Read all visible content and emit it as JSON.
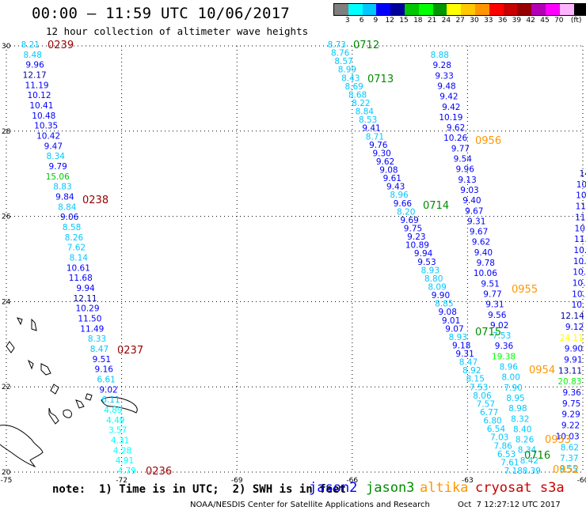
{
  "title": "00:00 – 11:59 UTC 10/06/2017",
  "subtitle": "12 hour collection of altimeter wave heights",
  "scale": {
    "colors": [
      "#7f7f7f",
      "#00ffff",
      "#00c8ff",
      "#0000ff",
      "#00009a",
      "#00c800",
      "#00ff00",
      "#009600",
      "#ffff00",
      "#ffc800",
      "#ff9600",
      "#ff0000",
      "#c80000",
      "#960000",
      "#b400b4",
      "#ff00ff",
      "#ffb4ff",
      "#000000"
    ],
    "labels": [
      "3",
      "6",
      "9",
      "12",
      "15",
      "18",
      "21",
      "24",
      "27",
      "30",
      "33",
      "36",
      "39",
      "42",
      "45",
      "70",
      "(ft)"
    ]
  },
  "map": {
    "x_ticks": [
      "-75",
      "-72",
      "-69",
      "-66",
      "-63",
      "-60"
    ],
    "y_ticks": [
      "30",
      "28",
      "26",
      "24",
      "22",
      "20"
    ],
    "x_range": [
      -75,
      -60
    ],
    "y_range": [
      20,
      30
    ]
  },
  "tracks": {
    "t1": {
      "values": [
        "8.21",
        "8.48",
        "9.96",
        "12.17",
        "11.19",
        "10.12",
        "10.41",
        "10.48",
        "10.35",
        "10.42",
        "9.47",
        "8.34",
        "9.79",
        "15.06",
        "8.83",
        "9.84",
        "8.84",
        "9.06",
        "8.58",
        "8.26",
        "7.62",
        "8.14",
        "10.61",
        "11.68",
        "9.94",
        "12.11",
        "10.29",
        "11.50",
        "11.49",
        "8.33",
        "8.47",
        "9.51",
        "9.16",
        "6.61",
        "9.02",
        "6.11",
        "4.89",
        "4.49",
        "3.57",
        "4.31",
        "4.28",
        "4.91",
        "4.79"
      ],
      "times": [
        "0239",
        "0238",
        "0237",
        "0236"
      ]
    },
    "t2": {
      "values": [
        "8.73",
        "8.76",
        "8.57",
        "8.99",
        "8.43",
        "8.69",
        "8.68",
        "8.22",
        "8.84",
        "8.53",
        "9.41",
        "8.71",
        "9.76",
        "9.30",
        "9.62",
        "9.08",
        "9.61",
        "9.43",
        "8.96",
        "9.66",
        "8.20",
        "9.69",
        "9.75",
        "9.23",
        "10.89",
        "9.94",
        "9.53",
        "8.93",
        "8.80",
        "8.09",
        "9.90",
        "8.85",
        "9.08",
        "9.01",
        "9.07",
        "8.93",
        "9.18",
        "9.31",
        "8.47",
        "8.92",
        "8.15",
        "7.53",
        "8.06",
        "7.57",
        "6.77",
        "6.80",
        "6.54",
        "7.03",
        "7.86",
        "6.53",
        "7.61",
        "7.18"
      ],
      "times": [
        "0712",
        "0713",
        "0714",
        "0715",
        "0716"
      ]
    },
    "t3": {
      "values": [
        "8.88",
        "9.28",
        "9.33",
        "9.48",
        "9.42",
        "9.42",
        "10.19",
        "9.62",
        "10.26",
        "9.77",
        "9.54",
        "9.96",
        "9.13",
        "9.03",
        "9.40",
        "9.67",
        "9.31",
        "9.67",
        "9.62",
        "9.40",
        "9.78",
        "10.06",
        "9.51",
        "9.77",
        "9.31",
        "9.56",
        "9.02",
        "7.53",
        "9.36",
        "19.38",
        "8.96",
        "8.00",
        "7.90",
        "8.95",
        "8.98",
        "8.32",
        "8.40",
        "8.26",
        "8.34",
        "8.42",
        "8.39"
      ],
      "times": [
        "0956",
        "0955",
        "0954",
        "0953"
      ]
    },
    "t4": {
      "values": [
        "14",
        "10.",
        "10.",
        "11.",
        "11.",
        "10.",
        "11.",
        "10.",
        "10.",
        "10.",
        "10.",
        "10.",
        "10.",
        "12.14",
        "9.12",
        "24.11",
        "9.90",
        "9.91",
        "13.11",
        "20.83",
        "9.36",
        "9.75",
        "9.29",
        "9.22",
        "10.03",
        "8.62",
        "7.37",
        "8.55"
      ],
      "times": [
        "0952"
      ]
    }
  },
  "footer": {
    "note": "note:  1) Time is in UTC;  2) SWH is in feet",
    "legend": [
      {
        "name": "jason2",
        "color": "#0000ff"
      },
      {
        "name": "jason3",
        "color": "#008c00"
      },
      {
        "name": "altika",
        "color": "#ff9600"
      },
      {
        "name": "cryosat s3a",
        "color": "#c80000"
      }
    ],
    "credit": "NOAA/NESDIS Center for Satellite Applications and Research",
    "timestamp": "Oct  7 12:27:12 UTC 2017"
  }
}
